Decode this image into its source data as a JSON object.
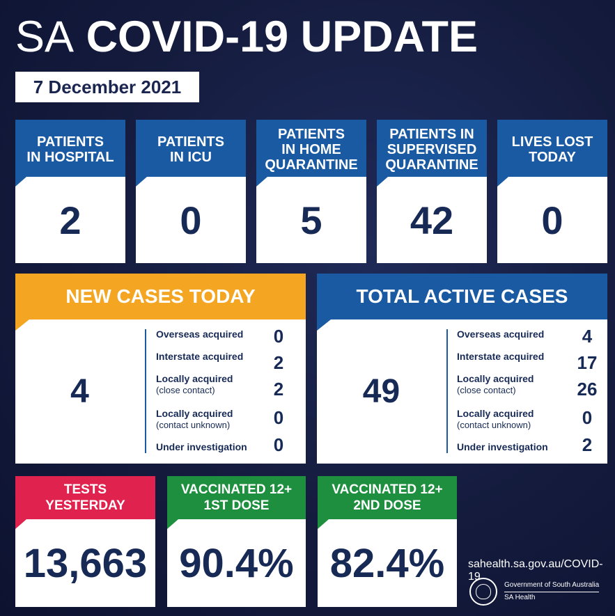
{
  "header": {
    "title_prefix": "SA",
    "title_rest": "COVID-19 UPDATE",
    "date": "7 December 2021"
  },
  "colors": {
    "background": "#141b3d",
    "blue": "#1a5aa2",
    "orange": "#f4a623",
    "red": "#e0234e",
    "green": "#1e8f3f",
    "value_text": "#172a56"
  },
  "top_stats": [
    {
      "label": "PATIENTS\nIN HOSPITAL",
      "value": "2"
    },
    {
      "label": "PATIENTS\nIN ICU",
      "value": "0"
    },
    {
      "label": "PATIENTS\nIN HOME\nQUARANTINE",
      "value": "5"
    },
    {
      "label": "PATIENTS IN\nSUPERVISED\nQUARANTINE",
      "value": "42"
    },
    {
      "label": "LIVES LOST\nTODAY",
      "value": "0"
    }
  ],
  "new_cases": {
    "title": "NEW CASES TODAY",
    "total": "4",
    "rows": [
      {
        "label": "Overseas acquired",
        "sub": "",
        "value": "0"
      },
      {
        "label": "Interstate acquired",
        "sub": "",
        "value": "2"
      },
      {
        "label": "Locally acquired",
        "sub": "(close contact)",
        "value": "2"
      },
      {
        "label": "Locally acquired",
        "sub": "(contact unknown)",
        "value": "0"
      },
      {
        "label": "Under investigation",
        "sub": "",
        "value": "0"
      }
    ]
  },
  "active_cases": {
    "title": "TOTAL ACTIVE CASES",
    "total": "49",
    "rows": [
      {
        "label": "Overseas acquired",
        "sub": "",
        "value": "4"
      },
      {
        "label": "Interstate acquired",
        "sub": "",
        "value": "17"
      },
      {
        "label": "Locally acquired",
        "sub": "(close contact)",
        "value": "26"
      },
      {
        "label": "Locally acquired",
        "sub": "(contact unknown)",
        "value": "0"
      },
      {
        "label": "Under investigation",
        "sub": "",
        "value": "2"
      }
    ]
  },
  "bottom_stats": [
    {
      "label": "TESTS\nYESTERDAY",
      "value": "13,663"
    },
    {
      "label": "VACCINATED 12+\n1ST DOSE",
      "value": "90.4%"
    },
    {
      "label": "VACCINATED 12+\n2ND DOSE",
      "value": "82.4%"
    }
  ],
  "footer": {
    "url": "sahealth.sa.gov.au/COVID-19",
    "gov_name": "Government of South Australia",
    "dept": "SA Health"
  }
}
